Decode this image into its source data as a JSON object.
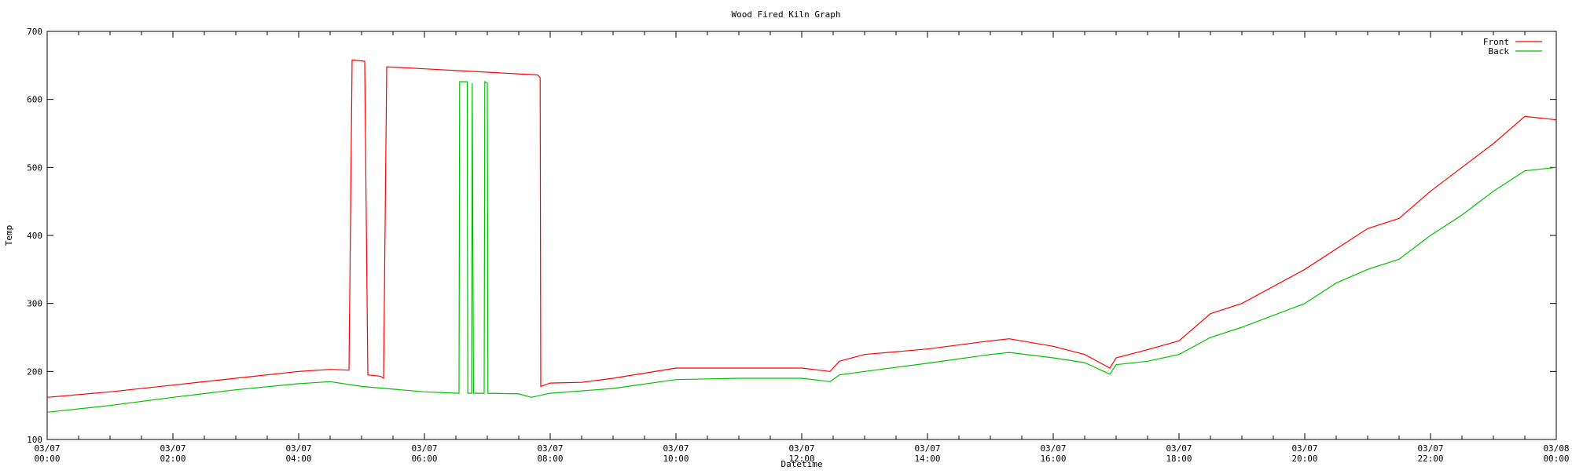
{
  "chart_data": {
    "type": "line",
    "title": "Wood Fired Kiln Graph",
    "xlabel": "Datetime",
    "ylabel": "Temp",
    "x_unit": "hours",
    "xlim": [
      0,
      24
    ],
    "ylim": [
      100,
      700
    ],
    "y_ticks": [
      100,
      200,
      300,
      400,
      500,
      600,
      700
    ],
    "x_ticks": [
      {
        "x": 0,
        "date": "03/07",
        "time": "00:00"
      },
      {
        "x": 2,
        "date": "03/07",
        "time": "02:00"
      },
      {
        "x": 4,
        "date": "03/07",
        "time": "04:00"
      },
      {
        "x": 6,
        "date": "03/07",
        "time": "06:00"
      },
      {
        "x": 8,
        "date": "03/07",
        "time": "08:00"
      },
      {
        "x": 10,
        "date": "03/07",
        "time": "10:00"
      },
      {
        "x": 12,
        "date": "03/07",
        "time": "12:00"
      },
      {
        "x": 14,
        "date": "03/07",
        "time": "14:00"
      },
      {
        "x": 16,
        "date": "03/07",
        "time": "16:00"
      },
      {
        "x": 18,
        "date": "03/07",
        "time": "18:00"
      },
      {
        "x": 20,
        "date": "03/07",
        "time": "20:00"
      },
      {
        "x": 22,
        "date": "03/07",
        "time": "22:00"
      },
      {
        "x": 24,
        "date": "03/08",
        "time": "00:00"
      }
    ],
    "grid": false,
    "legend_position": "top-right",
    "series": [
      {
        "name": "Front",
        "color": "#ff0000",
        "points": [
          [
            0.0,
            162
          ],
          [
            1.0,
            170
          ],
          [
            2.0,
            180
          ],
          [
            3.0,
            190
          ],
          [
            4.0,
            200
          ],
          [
            4.5,
            203
          ],
          [
            4.8,
            202
          ],
          [
            4.85,
            658
          ],
          [
            5.05,
            656
          ],
          [
            5.1,
            195
          ],
          [
            5.3,
            193
          ],
          [
            5.35,
            190
          ],
          [
            5.4,
            648
          ],
          [
            6.0,
            645
          ],
          [
            7.0,
            640
          ],
          [
            7.8,
            636
          ],
          [
            7.84,
            632
          ],
          [
            7.85,
            178
          ],
          [
            8.0,
            183
          ],
          [
            8.5,
            184
          ],
          [
            9.0,
            190
          ],
          [
            10.0,
            205
          ],
          [
            11.0,
            205
          ],
          [
            12.0,
            205
          ],
          [
            12.45,
            200
          ],
          [
            12.6,
            215
          ],
          [
            13.0,
            225
          ],
          [
            14.0,
            233
          ],
          [
            15.0,
            245
          ],
          [
            15.3,
            248
          ],
          [
            16.0,
            237
          ],
          [
            16.5,
            225
          ],
          [
            16.9,
            205
          ],
          [
            17.0,
            220
          ],
          [
            17.5,
            232
          ],
          [
            18.0,
            245
          ],
          [
            18.5,
            285
          ],
          [
            19.0,
            300
          ],
          [
            20.0,
            350
          ],
          [
            20.5,
            380
          ],
          [
            21.0,
            410
          ],
          [
            21.5,
            425
          ],
          [
            22.0,
            465
          ],
          [
            22.5,
            500
          ],
          [
            23.0,
            535
          ],
          [
            23.5,
            575
          ],
          [
            24.0,
            570
          ]
        ]
      },
      {
        "name": "Back",
        "color": "#00c000",
        "points": [
          [
            0.0,
            140
          ],
          [
            1.0,
            150
          ],
          [
            2.0,
            162
          ],
          [
            3.0,
            173
          ],
          [
            4.0,
            182
          ],
          [
            4.5,
            185
          ],
          [
            5.0,
            178
          ],
          [
            6.0,
            170
          ],
          [
            6.55,
            168
          ],
          [
            6.56,
            626
          ],
          [
            6.68,
            626
          ],
          [
            6.69,
            168
          ],
          [
            6.75,
            168
          ],
          [
            6.76,
            624
          ],
          [
            6.78,
            168
          ],
          [
            6.95,
            168
          ],
          [
            6.96,
            626
          ],
          [
            7.0,
            624
          ],
          [
            7.01,
            168
          ],
          [
            7.5,
            167
          ],
          [
            7.7,
            162
          ],
          [
            8.0,
            168
          ],
          [
            9.0,
            175
          ],
          [
            10.0,
            188
          ],
          [
            11.0,
            190
          ],
          [
            12.0,
            190
          ],
          [
            12.45,
            185
          ],
          [
            12.6,
            195
          ],
          [
            13.0,
            200
          ],
          [
            14.0,
            212
          ],
          [
            15.0,
            225
          ],
          [
            15.3,
            228
          ],
          [
            16.0,
            220
          ],
          [
            16.5,
            213
          ],
          [
            16.9,
            196
          ],
          [
            17.0,
            210
          ],
          [
            17.5,
            215
          ],
          [
            18.0,
            225
          ],
          [
            18.5,
            250
          ],
          [
            19.0,
            265
          ],
          [
            20.0,
            300
          ],
          [
            20.5,
            330
          ],
          [
            21.0,
            350
          ],
          [
            21.5,
            365
          ],
          [
            22.0,
            400
          ],
          [
            22.5,
            430
          ],
          [
            23.0,
            465
          ],
          [
            23.5,
            495
          ],
          [
            24.0,
            500
          ]
        ]
      }
    ]
  }
}
